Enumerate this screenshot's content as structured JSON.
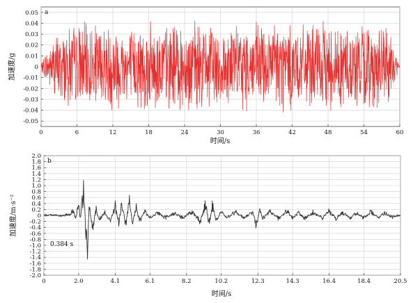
{
  "chart_data": [
    {
      "type": "line",
      "panel_label": "a",
      "xlabel": "时间/s",
      "ylabel": "加速度/g",
      "xlim": [
        0,
        60
      ],
      "ylim": [
        -0.055,
        0.055
      ],
      "x_ticks": [
        0,
        6,
        12,
        18,
        24,
        30,
        36,
        42,
        48,
        54,
        60
      ],
      "y_ticks": [
        "0.05",
        "0.04",
        "0.03",
        "0.02",
        "0.01",
        "0",
        "-0.01",
        "-0.02",
        "-0.03",
        "-0.04",
        "-0.05"
      ],
      "grid": true,
      "series": [
        {
          "color": "#e8302f",
          "x": [
            0,
            1,
            2,
            3,
            4,
            5,
            6,
            8,
            10,
            12,
            14,
            16,
            18,
            20,
            22,
            24,
            26,
            28,
            30,
            32,
            34,
            36,
            38,
            40,
            42,
            44,
            46,
            48,
            50,
            52,
            54,
            56,
            58,
            59,
            60
          ],
          "amplitude": [
            0.003,
            0.018,
            0.03,
            0.036,
            0.04,
            0.042,
            0.045,
            0.042,
            0.043,
            0.046,
            0.04,
            0.042,
            0.044,
            0.045,
            0.043,
            0.046,
            0.044,
            0.043,
            0.042,
            0.04,
            0.043,
            0.045,
            0.044,
            0.05,
            0.043,
            0.04,
            0.042,
            0.044,
            0.043,
            0.042,
            0.044,
            0.042,
            0.04,
            0.02,
            0.002
          ]
        }
      ]
    },
    {
      "type": "line",
      "panel_label": "b",
      "xlabel": "时间/s",
      "ylabel": "加速度/m·s⁻²",
      "xlim": [
        0,
        20.5
      ],
      "ylim": [
        -2.0,
        2.0
      ],
      "x_ticks": [
        "0",
        "2.0",
        "4.1",
        "6.1",
        "8.2",
        "10.2",
        "12.3",
        "14.3",
        "16.4",
        "18.4",
        "20.5"
      ],
      "y_ticks": [
        "2.0",
        "1.8",
        "1.6",
        "1.4",
        "1.2",
        "1.0",
        "0.8",
        "0.6",
        "0.4",
        "0.2",
        "0",
        "-0.2",
        "-0.4",
        "-0.6",
        "-0.8",
        "-1.0",
        "-1.2",
        "-1.4",
        "-1.6",
        "-1.8",
        "-2.0"
      ],
      "annotation": "0.384 s",
      "grid": true,
      "series": [
        {
          "color": "#333333",
          "x": [
            0,
            0.5,
            1.0,
            1.5,
            1.7,
            1.8,
            2.0,
            2.1,
            2.2,
            2.3,
            2.4,
            2.5,
            2.6,
            2.8,
            3.0,
            3.2,
            3.5,
            3.8,
            4.1,
            4.3,
            4.5,
            4.7,
            4.9,
            5.1,
            5.3,
            5.5,
            5.8,
            6.1,
            6.5,
            7.0,
            7.5,
            8.0,
            8.5,
            9.0,
            9.3,
            9.5,
            9.7,
            9.9,
            10.2,
            10.5,
            11.0,
            11.5,
            12.0,
            12.2,
            12.4,
            12.6,
            13.0,
            13.5,
            14.0,
            14.3,
            14.6,
            15.0,
            15.5,
            16.0,
            16.4,
            16.8,
            17.2,
            17.6,
            18.0,
            18.4,
            18.8,
            19.2,
            19.6,
            20.0,
            20.5
          ],
          "y": [
            0,
            0.02,
            -0.02,
            0.05,
            0.18,
            -0.12,
            0.35,
            -0.2,
            0.55,
            0.78,
            -0.5,
            -1.0,
            0.3,
            -0.4,
            0.2,
            -0.15,
            0.12,
            -0.2,
            0.3,
            -0.25,
            0.45,
            -0.4,
            0.5,
            -0.3,
            0.25,
            -0.2,
            0.15,
            -0.1,
            0.1,
            -0.08,
            0.08,
            -0.1,
            0.15,
            -0.2,
            0.4,
            -0.3,
            0.35,
            -0.2,
            0.15,
            -0.1,
            0.12,
            -0.08,
            0.1,
            -0.3,
            0.15,
            -0.1,
            0.12,
            -0.1,
            0.15,
            -0.12,
            0.1,
            -0.1,
            0.12,
            -0.1,
            0.15,
            -0.1,
            0.12,
            -0.08,
            0.1,
            -0.1,
            0.12,
            -0.08,
            0.1,
            -0.06,
            0
          ]
        }
      ]
    }
  ]
}
